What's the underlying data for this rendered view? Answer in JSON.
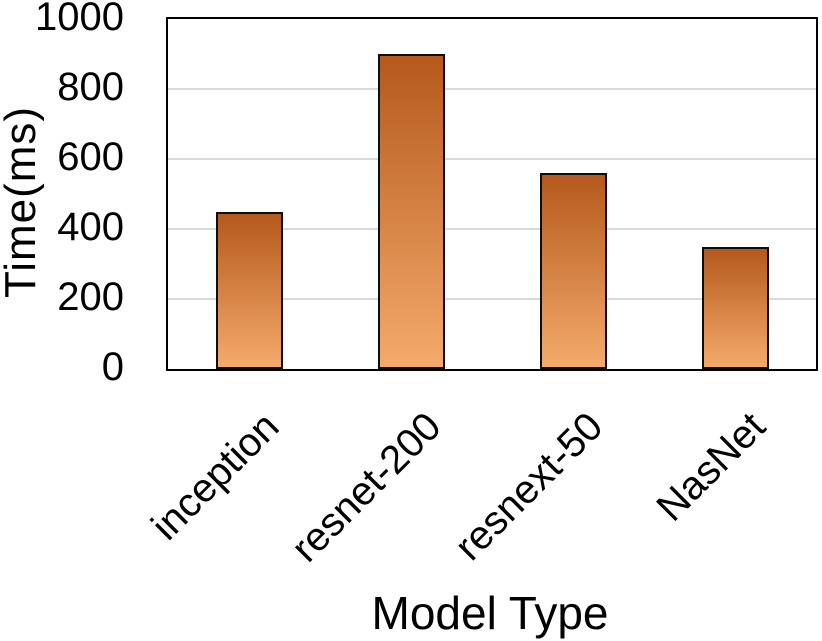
{
  "chart_data": {
    "type": "bar",
    "categories": [
      "inception",
      "resnet-200",
      "resnext-50",
      "NasNet"
    ],
    "values": [
      450,
      900,
      560,
      350
    ],
    "title": "",
    "xlabel": "Model Type",
    "ylabel": "Time(ms)",
    "ylim": [
      0,
      1000
    ],
    "yticks": [
      0,
      200,
      400,
      600,
      800,
      1000
    ],
    "grid": true,
    "legend_position": "none",
    "category_label_rotation_deg": -45,
    "colors": {
      "bar_gradient_top": "#b5591c",
      "bar_gradient_bottom": "#f4aa6c",
      "bar_border": "#0d0d0d",
      "gridline": "#d9d9d9",
      "axis": "#000000",
      "text": "#000000",
      "background": "#ffffff"
    }
  }
}
